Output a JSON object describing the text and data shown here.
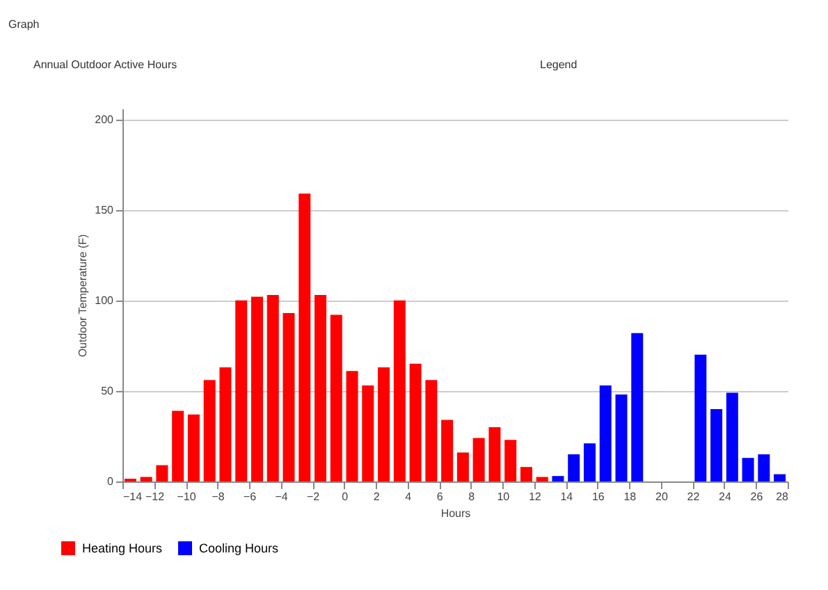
{
  "chart_data": {
    "type": "bar",
    "title": "Annual Outdoor Active Hours",
    "annotations": [
      "Graph",
      "Legend"
    ],
    "xlabel": "Hours",
    "ylabel": "Outdoor Temperature (F)",
    "series": [
      {
        "name": "Heating Hours",
        "color": "#ff0000",
        "x": [
          -13.5,
          -12.5,
          -11.5,
          -10.5,
          -9.5,
          -8.5,
          -7.5,
          -6.5,
          -5.5,
          -4.5,
          -3.5,
          -2.5,
          -1.5,
          -0.5,
          0.5,
          1.5,
          2.5,
          3.5,
          4.5,
          5.5,
          6.5,
          7.5,
          8.5,
          9.5,
          10.5,
          11.5,
          12.5
        ],
        "values": [
          1.5,
          2.5,
          9,
          39,
          37,
          56,
          63,
          100,
          102,
          103,
          93,
          159,
          103,
          92,
          61,
          53,
          63,
          100,
          65,
          56,
          34,
          16,
          24,
          30,
          23,
          8,
          2.5
        ]
      },
      {
        "name": "Cooling Hours",
        "color": "#0000ff",
        "x": [
          13.5,
          14.5,
          15.5,
          16.5,
          17.5,
          18.5,
          19.5,
          20.5,
          21.5,
          22.5,
          23.5,
          24.5,
          25.5,
          26.5,
          27.5
        ],
        "values": [
          3,
          15,
          21,
          53,
          48,
          82,
          0,
          0,
          0,
          70,
          40,
          49,
          13,
          15,
          4
        ]
      }
    ],
    "xlim": [
      -14,
      28
    ],
    "xticks": [
      -14,
      -12,
      -10,
      -8,
      -6,
      -4,
      -2,
      0,
      2,
      4,
      6,
      8,
      10,
      12,
      14,
      16,
      18,
      20,
      22,
      24,
      26,
      28
    ],
    "ylim": [
      0,
      206
    ],
    "yticks": [
      0,
      50,
      100,
      150,
      200
    ],
    "grid": "y",
    "legend": "bottom left"
  }
}
